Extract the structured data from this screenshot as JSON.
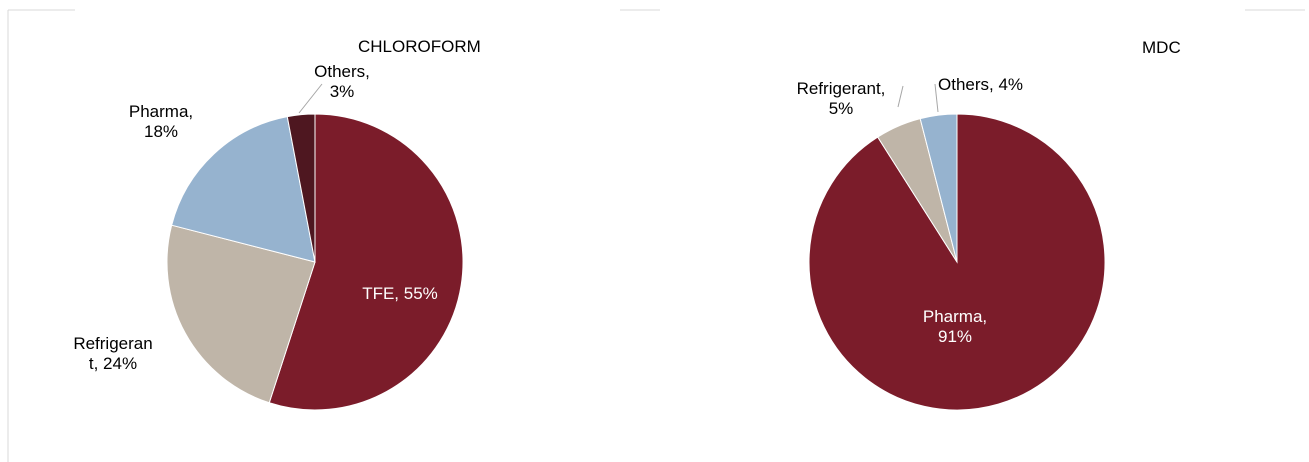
{
  "chart_data": [
    {
      "type": "pie",
      "title": "CHLOROFORM",
      "slices": [
        {
          "label": "TFE",
          "value": 55,
          "value_text": "55%",
          "color": "#7b1c2a"
        },
        {
          "label": "Refrigeran\nt",
          "value": 24,
          "value_text": "24%",
          "color": "#bfb5a8"
        },
        {
          "label": "Pharma",
          "value": 18,
          "value_text": "18%",
          "color": "#96b3cf"
        },
        {
          "label": "Others",
          "value": 3,
          "value_text": "3%",
          "color": "#4e1720"
        }
      ]
    },
    {
      "type": "pie",
      "title": "MDC",
      "slices": [
        {
          "label": "Pharma",
          "value": 91,
          "value_text": "91%",
          "color": "#7b1c2a"
        },
        {
          "label": "Refrigerant",
          "value": 5,
          "value_text": "5%",
          "color": "#bfb5a8"
        },
        {
          "label": "Others",
          "value": 4,
          "value_text": "4%",
          "color": "#96b3cf"
        }
      ]
    }
  ]
}
